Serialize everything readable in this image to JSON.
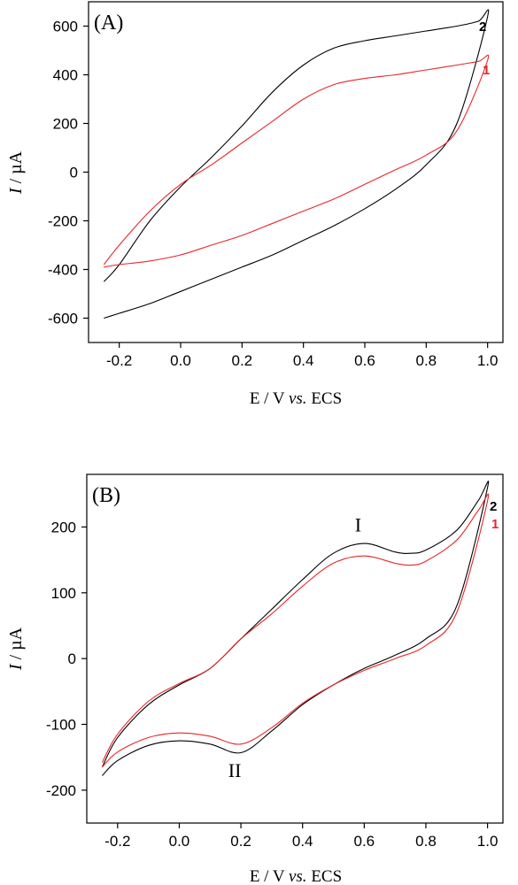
{
  "chart_data": [
    {
      "type": "line",
      "panel_label": "(A)",
      "xlabel_main": "E / V",
      "xlabel_italic": "vs.",
      "xlabel_tail": "ECS",
      "ylabel_italic": "I",
      "ylabel_rest": " / µA",
      "xlim": [
        -0.3,
        1.05
      ],
      "ylim": [
        -700,
        700
      ],
      "x_ticks": [
        -0.2,
        0.0,
        0.2,
        0.4,
        0.6,
        0.8,
        1.0
      ],
      "x_tick_labels": [
        "-0.2",
        "0.0",
        "0.2",
        "0.4",
        "0.6",
        "0.8",
        "1.0"
      ],
      "y_ticks": [
        -600,
        -400,
        -200,
        0,
        200,
        400,
        600
      ],
      "y_tick_labels": [
        "-600",
        "-400",
        "-200",
        "0",
        "200",
        "400",
        "600"
      ],
      "series": [
        {
          "name": "2",
          "color": "#000000",
          "x": [
            -0.25,
            -0.2,
            -0.1,
            0.0,
            0.1,
            0.2,
            0.3,
            0.4,
            0.5,
            0.6,
            0.7,
            0.8,
            0.9,
            1.0,
            0.97,
            0.9,
            0.8,
            0.7,
            0.6,
            0.5,
            0.4,
            0.3,
            0.2,
            0.1,
            0.0,
            -0.1,
            -0.2,
            -0.25
          ],
          "y": [
            -600,
            -580,
            -540,
            -490,
            -440,
            -390,
            -340,
            -280,
            -220,
            -150,
            -70,
            30,
            200,
            640,
            620,
            600,
            580,
            560,
            540,
            510,
            440,
            330,
            190,
            60,
            -60,
            -200,
            -380,
            -450
          ]
        },
        {
          "name": "1",
          "color": "#e8262a",
          "x": [
            -0.25,
            -0.2,
            -0.1,
            0.0,
            0.1,
            0.2,
            0.3,
            0.4,
            0.5,
            0.6,
            0.7,
            0.8,
            0.9,
            1.0,
            0.97,
            0.9,
            0.8,
            0.7,
            0.6,
            0.5,
            0.4,
            0.3,
            0.2,
            0.1,
            0.0,
            -0.1,
            -0.2,
            -0.25
          ],
          "y": [
            -390,
            -380,
            -365,
            -340,
            -300,
            -260,
            -210,
            -160,
            -110,
            -50,
            10,
            70,
            170,
            460,
            455,
            440,
            420,
            400,
            385,
            360,
            300,
            210,
            120,
            30,
            -50,
            -160,
            -300,
            -380
          ]
        }
      ]
    },
    {
      "type": "line",
      "panel_label": "(B)",
      "xlabel_main": "E / V",
      "xlabel_italic": "vs.",
      "xlabel_tail": "ECS",
      "ylabel_italic": "I",
      "ylabel_rest": " / µA",
      "xlim": [
        -0.3,
        1.05
      ],
      "ylim": [
        -250,
        280
      ],
      "x_ticks": [
        -0.2,
        0.0,
        0.2,
        0.4,
        0.6,
        0.8,
        1.0
      ],
      "x_tick_labels": [
        "-0.2",
        "0.0",
        "0.2",
        "0.4",
        "0.6",
        "0.8",
        "1.0"
      ],
      "y_ticks": [
        -200,
        -100,
        0,
        100,
        200
      ],
      "y_tick_labels": [
        "-200",
        "-100",
        "0",
        "100",
        "200"
      ],
      "annotations": [
        {
          "text": "I",
          "x": 0.58,
          "y": 193
        },
        {
          "text": "II",
          "x": 0.18,
          "y": -180
        }
      ],
      "series": [
        {
          "name": "2",
          "color": "#000000",
          "x": [
            -0.25,
            -0.2,
            -0.1,
            0.0,
            0.1,
            0.2,
            0.3,
            0.4,
            0.5,
            0.6,
            0.7,
            0.8,
            0.9,
            1.0,
            0.97,
            0.9,
            0.8,
            0.75,
            0.7,
            0.6,
            0.5,
            0.4,
            0.3,
            0.2,
            0.1,
            0.0,
            -0.1,
            -0.2,
            -0.25
          ],
          "y": [
            -178,
            -155,
            -132,
            -125,
            -130,
            -143,
            -110,
            -70,
            -40,
            -15,
            5,
            30,
            80,
            260,
            240,
            195,
            165,
            160,
            162,
            175,
            160,
            120,
            75,
            30,
            -15,
            -40,
            -70,
            -120,
            -165
          ]
        },
        {
          "name": "1",
          "color": "#e8262a",
          "x": [
            -0.25,
            -0.2,
            -0.1,
            0.0,
            0.1,
            0.2,
            0.3,
            0.4,
            0.5,
            0.6,
            0.7,
            0.8,
            0.9,
            1.0,
            0.97,
            0.9,
            0.8,
            0.75,
            0.7,
            0.6,
            0.5,
            0.4,
            0.3,
            0.2,
            0.1,
            0.0,
            -0.1,
            -0.2,
            -0.25
          ],
          "y": [
            -165,
            -142,
            -120,
            -113,
            -118,
            -130,
            -105,
            -68,
            -40,
            -18,
            0,
            20,
            70,
            240,
            225,
            180,
            148,
            142,
            145,
            156,
            145,
            110,
            68,
            30,
            -15,
            -38,
            -65,
            -115,
            -158
          ]
        }
      ]
    }
  ]
}
